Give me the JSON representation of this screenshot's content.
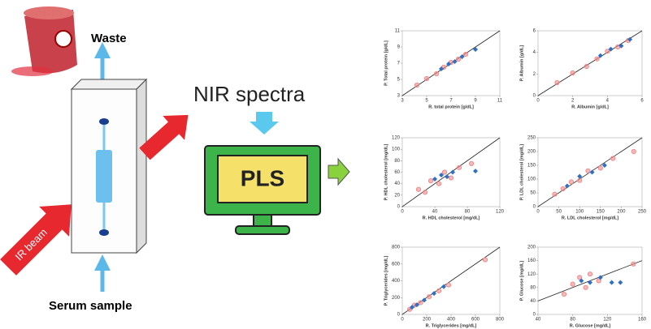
{
  "labels": {
    "waste": "Waste",
    "nir": "NIR spectra",
    "pls": "PLS",
    "ir_beam": "IR beam",
    "serum": "Serum sample"
  },
  "plots": [
    {
      "type": "scatter",
      "ylabel": "P. Total protein [g/dL]",
      "xlabel": "R. total protein [g/dL]",
      "xlim": [
        3,
        11
      ],
      "ylim": [
        3,
        11
      ],
      "xticks": [
        3,
        5,
        7,
        9,
        11
      ],
      "yticks": [
        3,
        5,
        7,
        9,
        11
      ],
      "series": [
        {
          "color": "#f08a8a",
          "x": [
            4.2,
            5,
            5.8,
            6.4,
            7,
            7.6,
            8.2
          ],
          "y": [
            4.3,
            5.1,
            5.7,
            6.5,
            7.1,
            7.5,
            8.1
          ]
        },
        {
          "color": "#2f6fc4",
          "x": [
            6.2,
            6.8,
            7.3,
            7.9,
            9
          ],
          "y": [
            6.3,
            6.9,
            7.2,
            7.8,
            8.7
          ]
        }
      ]
    },
    {
      "type": "scatter",
      "ylabel": "P. Albumin [g/dL]",
      "xlabel": "R. Albumin [g/dL]",
      "xlim": [
        0,
        6
      ],
      "ylim": [
        0,
        6
      ],
      "xticks": [
        0,
        2,
        4,
        6
      ],
      "yticks": [
        0,
        2,
        4,
        6
      ],
      "series": [
        {
          "color": "#f08a8a",
          "x": [
            1.1,
            2,
            2.8,
            3.4,
            4,
            4.6,
            5.2
          ],
          "y": [
            1.2,
            2.1,
            2.7,
            3.4,
            4.1,
            4.5,
            5.1
          ]
        },
        {
          "color": "#2f6fc4",
          "x": [
            3.6,
            4.2,
            4.8,
            5.3
          ],
          "y": [
            3.7,
            4.3,
            4.6,
            5.2
          ]
        }
      ]
    },
    {
      "type": "scatter",
      "ylabel": "P. HDL cholesterol [mg/dL]",
      "xlabel": "R. HDL cholesterol [mg/dL]",
      "xlim": [
        0,
        120
      ],
      "ylim": [
        0,
        120
      ],
      "xticks": [
        0,
        40,
        80,
        120
      ],
      "yticks": [
        0,
        20,
        40,
        60,
        80,
        100,
        120
      ],
      "series": [
        {
          "color": "#f08a8a",
          "x": [
            20,
            28,
            35,
            45,
            52,
            60,
            70,
            85
          ],
          "y": [
            30,
            25,
            45,
            40,
            60,
            50,
            68,
            75
          ]
        },
        {
          "color": "#2f6fc4",
          "x": [
            40,
            48,
            55,
            62,
            90
          ],
          "y": [
            48,
            55,
            52,
            60,
            62
          ]
        }
      ]
    },
    {
      "type": "scatter",
      "ylabel": "P. LDL cholesterol [mg/dL]",
      "xlabel": "R. LDL cholesterol [mg/dL]",
      "xlim": [
        0,
        250
      ],
      "ylim": [
        0,
        250
      ],
      "xticks": [
        0,
        50,
        100,
        150,
        200,
        250
      ],
      "yticks": [
        0,
        50,
        100,
        150,
        200,
        250
      ],
      "series": [
        {
          "color": "#f08a8a",
          "x": [
            40,
            60,
            80,
            100,
            120,
            150,
            180,
            230
          ],
          "y": [
            45,
            65,
            90,
            95,
            130,
            140,
            175,
            200
          ]
        },
        {
          "color": "#2f6fc4",
          "x": [
            70,
            100,
            130,
            160
          ],
          "y": [
            75,
            110,
            125,
            150
          ]
        }
      ]
    },
    {
      "type": "scatter",
      "ylabel": "P. Triglycerides [mg/dL]",
      "xlabel": "R. Triglycerides [mg/dL]",
      "xlim": [
        0,
        800
      ],
      "ylim": [
        0,
        800
      ],
      "xticks": [
        0,
        200,
        400,
        600,
        800
      ],
      "yticks": [
        0,
        200,
        400,
        600,
        800
      ],
      "series": [
        {
          "color": "#f08a8a",
          "x": [
            60,
            100,
            150,
            220,
            300,
            380,
            680
          ],
          "y": [
            60,
            110,
            140,
            210,
            280,
            350,
            650
          ]
        },
        {
          "color": "#2f6fc4",
          "x": [
            80,
            120,
            180,
            260,
            340
          ],
          "y": [
            85,
            115,
            170,
            250,
            330
          ]
        }
      ]
    },
    {
      "type": "scatter",
      "ylabel": "P. Glucose [mg/dL]",
      "xlabel": "R. Glucose [mg/dL]",
      "xlim": [
        40,
        160
      ],
      "ylim": [
        0,
        200
      ],
      "xticks": [
        40,
        80,
        120,
        160
      ],
      "yticks": [
        0,
        40,
        80,
        120,
        160,
        200
      ],
      "series": [
        {
          "color": "#f08a8a",
          "x": [
            70,
            80,
            88,
            95,
            100,
            110,
            150
          ],
          "y": [
            60,
            90,
            110,
            80,
            120,
            100,
            150
          ]
        },
        {
          "color": "#2f6fc4",
          "x": [
            90,
            100,
            112,
            125,
            135
          ],
          "y": [
            100,
            95,
            110,
            95,
            95
          ]
        }
      ]
    }
  ]
}
